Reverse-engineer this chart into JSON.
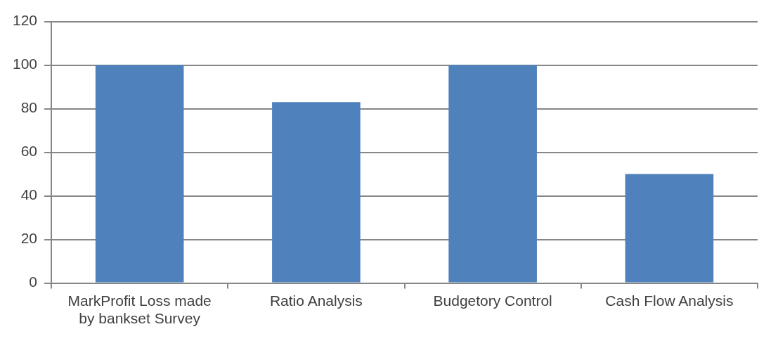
{
  "chart_data": {
    "type": "bar",
    "categories": [
      "MarkProfit Loss made by bankset Survey",
      "Ratio Analysis",
      "Budgetory Control",
      "Cash Flow Analysis"
    ],
    "values": [
      100,
      83,
      100,
      50
    ],
    "color": "#4f81bd",
    "ylim": [
      0,
      120
    ],
    "yticks": [
      0,
      20,
      40,
      60,
      80,
      100,
      120
    ],
    "grid": "y",
    "legend": false
  }
}
